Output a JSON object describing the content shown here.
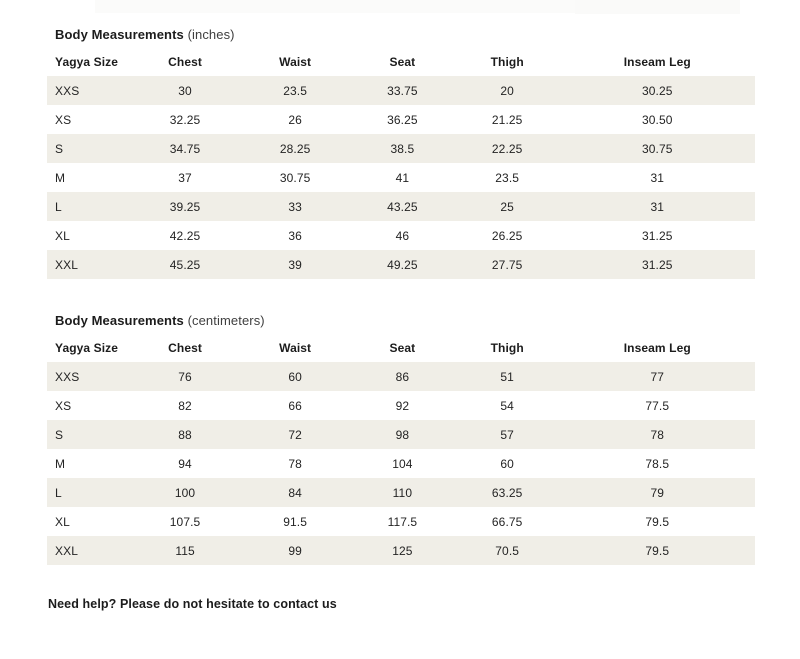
{
  "colors": {
    "row_shade": "#f0eee7",
    "text_dark": "#1c1c1c",
    "text_muted": "#3f3f3f",
    "background": "#ffffff"
  },
  "sections": [
    {
      "title_bold": "Body Measurements",
      "title_unit": "(inches)",
      "columns": [
        "Yagya Size",
        "Chest",
        "Waist",
        "Seat",
        "Thigh",
        "Inseam Leg"
      ],
      "rows": [
        [
          "XXS",
          "30",
          "23.5",
          "33.75",
          "20",
          "30.25"
        ],
        [
          "XS",
          "32.25",
          "26",
          "36.25",
          "21.25",
          "30.50"
        ],
        [
          "S",
          "34.75",
          "28.25",
          "38.5",
          "22.25",
          "30.75"
        ],
        [
          "M",
          "37",
          "30.75",
          "41",
          "23.5",
          "31"
        ],
        [
          "L",
          "39.25",
          "33",
          "43.25",
          "25",
          "31"
        ],
        [
          "XL",
          "42.25",
          "36",
          "46",
          "26.25",
          "31.25"
        ],
        [
          "XXL",
          "45.25",
          "39",
          "49.25",
          "27.75",
          "31.25"
        ]
      ]
    },
    {
      "title_bold": "Body Measurements",
      "title_unit": "(centimeters)",
      "columns": [
        "Yagya Size",
        "Chest",
        "Waist",
        "Seat",
        "Thigh",
        "Inseam Leg"
      ],
      "rows": [
        [
          "XXS",
          "76",
          "60",
          "86",
          "51",
          "77"
        ],
        [
          "XS",
          "82",
          "66",
          "92",
          "54",
          "77.5"
        ],
        [
          "S",
          "88",
          "72",
          "98",
          "57",
          "78"
        ],
        [
          "M",
          "94",
          "78",
          "104",
          "60",
          "78.5"
        ],
        [
          "L",
          "100",
          "84",
          "110",
          "63.25",
          "79"
        ],
        [
          "XL",
          "107.5",
          "91.5",
          "117.5",
          "66.75",
          "79.5"
        ],
        [
          "XXL",
          "115",
          "99",
          "125",
          "70.5",
          "79.5"
        ]
      ]
    }
  ],
  "footer": {
    "prefix": "Need help? Please do not hesitate to ",
    "link_text": "contact us"
  }
}
